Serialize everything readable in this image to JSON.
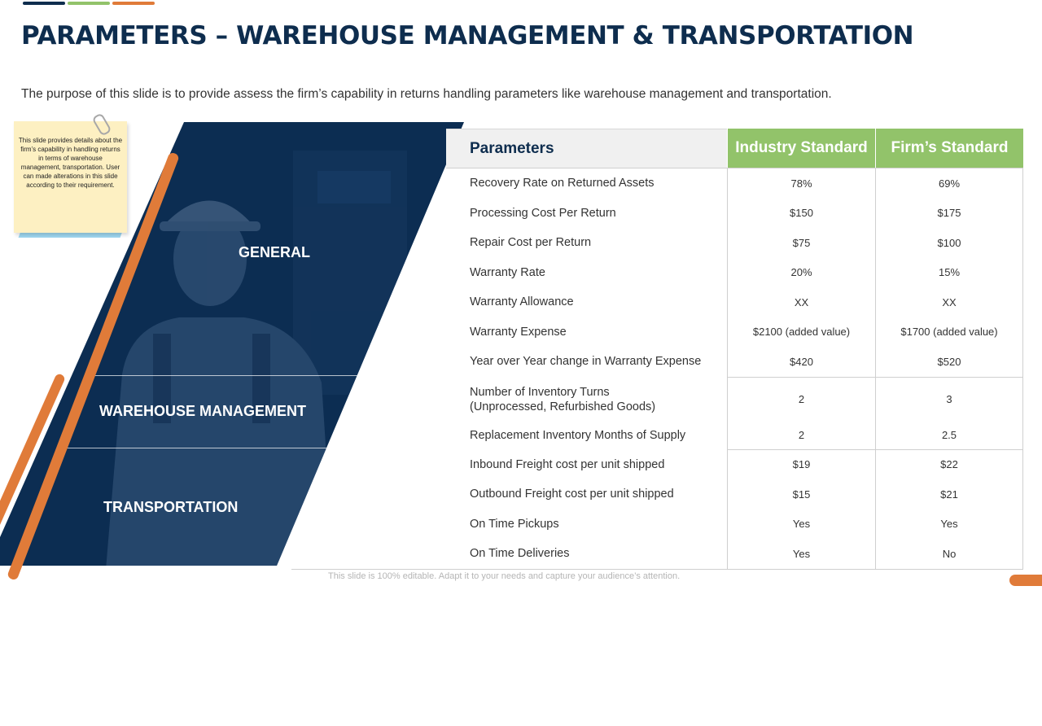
{
  "title": "PARAMETERS – WAREHOUSE MANAGEMENT & TRANSPORTATION",
  "subtitle": "The purpose of this slide is to provide assess the firm’s capability in returns handling parameters like warehouse management and transportation.",
  "sticky_note": "This slide provides details about the firm’s capability in handling returns in terms of warehouse management, transportation. User can made alterations in this slide according to their requirement.",
  "sections": {
    "general": "GENERAL",
    "warehouse": "WAREHOUSE MANAGEMENT",
    "transportation": "TRANSPORTATION"
  },
  "table": {
    "headers": {
      "parameters": "Parameters",
      "industry": "Industry Standard",
      "firm": "Firm’s Standard"
    },
    "rows": [
      {
        "param": "Recovery Rate on Returned Assets",
        "industry": "78%",
        "firm": "69%"
      },
      {
        "param": "Processing Cost Per Return",
        "industry": "$150",
        "firm": "$175"
      },
      {
        "param": "Repair Cost per Return",
        "industry": "$75",
        "firm": "$100"
      },
      {
        "param": "Warranty Rate",
        "industry": "20%",
        "firm": "15%"
      },
      {
        "param": "Warranty Allowance",
        "industry": "XX",
        "firm": "XX"
      },
      {
        "param": "Warranty Expense",
        "industry": "$2100 (added value)",
        "firm": "$1700 (added value)"
      },
      {
        "param": "Year over Year change in Warranty Expense",
        "industry": "$420",
        "firm": "$520"
      },
      {
        "param_line1": "Number of Inventory Turns",
        "param_line2": "(Unprocessed, Refurbished Goods)",
        "industry": "2",
        "firm": "3"
      },
      {
        "param": "Replacement Inventory  Months of Supply",
        "industry": "2",
        "firm": "2.5"
      },
      {
        "param": "Inbound  Freight cost per unit shipped",
        "industry": "$19",
        "firm": "$22"
      },
      {
        "param": "Outbound Freight cost per unit shipped",
        "industry": "$15",
        "firm": "$21"
      },
      {
        "param": "On Time Pickups",
        "industry": "Yes",
        "firm": "Yes"
      },
      {
        "param": "On Time Deliveries",
        "industry": "Yes",
        "firm": "No"
      }
    ]
  },
  "footer": "This slide is 100% editable. Adapt it to your needs and capture your audience’s attention.",
  "colors": {
    "navy": "#0e2d4e",
    "green": "#92c36a",
    "orange": "#e07b39",
    "gray_bar": "#8c8c8c"
  }
}
